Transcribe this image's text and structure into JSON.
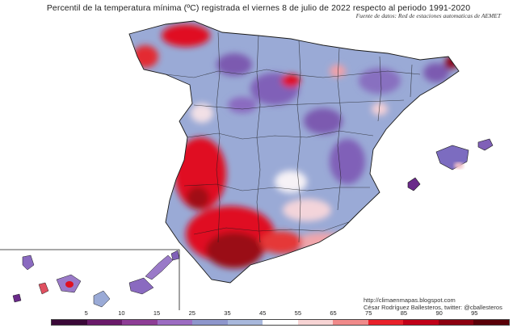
{
  "title": "Percentil de la temperatura mínima (ºC) registrada el viernes 8 de julio de 2022 respecto al periodo 1991-2020",
  "source": "Fuente de datos: Red de estaciones automaticas de AEMET",
  "credits": {
    "blog": "http://climaenmapas.blogspot.com",
    "author": "César Rodríguez Ballesteros, twitter: @cballesteros"
  },
  "legend": {
    "ticks": [
      "5",
      "10",
      "15",
      "25",
      "35",
      "45",
      "55",
      "65",
      "75",
      "85",
      "90",
      "95"
    ],
    "colors": [
      "#3a0838",
      "#6a1a6a",
      "#8e3d96",
      "#9c6cc2",
      "#8e96cc",
      "#a8b8dc",
      "#ffffff",
      "#f7d4d4",
      "#f08a8a",
      "#e8202a",
      "#c00018",
      "#8c0010",
      "#5a0008"
    ]
  },
  "colors": {
    "hot": "#e01020",
    "very_hot": "#8c0010",
    "cool": "#9aaad6",
    "cold": "#7c5ab0",
    "neutral": "#f4eef2"
  }
}
